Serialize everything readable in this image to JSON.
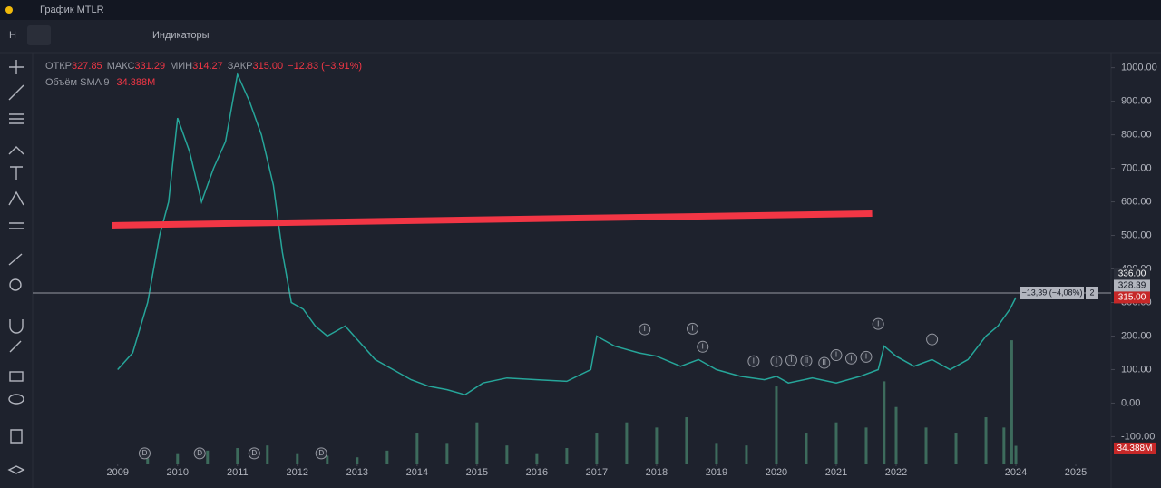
{
  "ui": {
    "title": "График MTLR",
    "interval": "H",
    "indicators": "Индикаторы"
  },
  "chart_data": {
    "type": "line",
    "legend": {
      "open_label": "ОТКР",
      "open": 327.85,
      "high_label": "МАКС",
      "high": 331.29,
      "low_label": "МИН",
      "low": 314.27,
      "close_label": "ЗАКР",
      "close": {
        "value": 315,
        "label": "315.00"
      },
      "change": "−12.83 (−3.91%)",
      "volume_label": "Объём SMA 9",
      "volume": {
        "value": 34.388,
        "label": "34.388M"
      }
    },
    "xlim": [
      2007.58,
      2025.59
    ],
    "xticks": [
      2009,
      2010,
      2011,
      2012,
      2013,
      2014,
      2015,
      2016,
      2017,
      2018,
      2019,
      2020,
      2021,
      2022,
      2024,
      2025
    ],
    "ylim": [
      -180,
      1045
    ],
    "yticks": [
      {
        "value": 1000,
        "label": "1000.00"
      },
      {
        "value": 900,
        "label": "900.00"
      },
      {
        "value": 800,
        "label": "800.00"
      },
      {
        "value": 700,
        "label": "700.00"
      },
      {
        "value": 600,
        "label": "600.00"
      },
      {
        "value": 500,
        "label": "500.00"
      },
      {
        "value": 400,
        "label": "400.00"
      },
      {
        "value": 300,
        "label": "300.00"
      },
      {
        "value": 200,
        "label": "200.00"
      },
      {
        "value": 100,
        "label": "100.00"
      },
      {
        "value": 0,
        "label": "0.00"
      },
      {
        "value": -100,
        "label": "-100.00"
      }
    ],
    "y2lim": [
      0,
      800
    ],
    "series": [
      {
        "color": "#26a69a",
        "x": [
          2009.0,
          2009.25,
          2009.5,
          2009.7,
          2009.85,
          2010.0,
          2010.2,
          2010.4,
          2010.6,
          2010.8,
          2011.0,
          2011.2,
          2011.4,
          2011.6,
          2011.75,
          2011.9,
          2012.1,
          2012.3,
          2012.5,
          2012.8,
          2013.0,
          2013.3,
          2013.6,
          2013.9,
          2014.2,
          2014.5,
          2014.8,
          2015.1,
          2015.5,
          2016.0,
          2016.5,
          2016.9,
          2017.0,
          2017.3,
          2017.7,
          2018.0,
          2018.4,
          2018.7,
          2019.0,
          2019.4,
          2019.8,
          2020.0,
          2020.2,
          2020.6,
          2021.0,
          2021.4,
          2021.7,
          2021.8,
          2022.0,
          2022.3,
          2022.6,
          2022.9,
          2023.2,
          2023.5,
          2023.7,
          2023.9,
          2024.0
        ],
        "values": [
          100,
          150,
          300,
          500,
          600,
          850,
          750,
          600,
          700,
          780,
          980,
          900,
          800,
          650,
          450,
          300,
          280,
          230,
          200,
          230,
          190,
          130,
          100,
          70,
          50,
          40,
          25,
          60,
          75,
          70,
          65,
          100,
          200,
          170,
          150,
          140,
          110,
          130,
          100,
          80,
          70,
          80,
          60,
          75,
          60,
          80,
          100,
          170,
          140,
          110,
          130,
          100,
          130,
          200,
          230,
          280,
          315
        ]
      },
      {
        "axis": "y2",
        "color": "#3d6b5c",
        "x": [
          2009.5,
          2010.0,
          2010.5,
          2011.0,
          2011.5,
          2012.0,
          2012.5,
          2013.0,
          2013.5,
          2014.0,
          2014.5,
          2015.0,
          2015.5,
          2016.0,
          2016.5,
          2017.0,
          2017.5,
          2018.0,
          2018.5,
          2019.0,
          2019.5,
          2020.0,
          2020.5,
          2021.0,
          2021.5,
          2021.8,
          2022.0,
          2022.5,
          2023.0,
          2023.5,
          2023.8,
          2023.93,
          2024.0
        ],
        "values": [
          10,
          20,
          25,
          30,
          35,
          20,
          15,
          12,
          25,
          60,
          40,
          80,
          35,
          20,
          30,
          60,
          80,
          70,
          90,
          40,
          35,
          150,
          60,
          80,
          70,
          160,
          110,
          70,
          60,
          90,
          70,
          240,
          34.388
        ]
      }
    ],
    "trendline": {
      "x": [
        2008.9,
        2021.6
      ],
      "y": [
        530,
        565
      ],
      "color": "#f23645"
    },
    "crosshair": {
      "value": 328.39,
      "label": "−13,39 (−4,08%)",
      "count": 2
    },
    "price_labels": [
      {
        "value": 336,
        "label": "336.00",
        "color": "#2a2e39"
      },
      {
        "value": 328.39,
        "label": "328.39",
        "color": "#b2b5be"
      },
      {
        "value": 315,
        "label": "315.00",
        "color": "#c62828"
      }
    ],
    "events": [
      {
        "x": 2009.45,
        "y": -150,
        "label": "D"
      },
      {
        "x": 2010.37,
        "y": -150,
        "label": "D"
      },
      {
        "x": 2011.28,
        "y": -150,
        "label": "D"
      },
      {
        "x": 2012.4,
        "y": -150,
        "label": "D"
      },
      {
        "x": 2017.8,
        "y": 220,
        "label": "I"
      },
      {
        "x": 2018.6,
        "y": 222,
        "label": "I"
      },
      {
        "x": 2018.77,
        "y": 168,
        "label": "I"
      },
      {
        "x": 2019.62,
        "y": 125,
        "label": "I"
      },
      {
        "x": 2020.0,
        "y": 125,
        "label": "I"
      },
      {
        "x": 2020.25,
        "y": 128,
        "label": "I"
      },
      {
        "x": 2020.5,
        "y": 126,
        "label": "II"
      },
      {
        "x": 2020.8,
        "y": 120,
        "label": "II"
      },
      {
        "x": 2021.0,
        "y": 143,
        "label": "I"
      },
      {
        "x": 2021.25,
        "y": 133,
        "label": "I"
      },
      {
        "x": 2021.5,
        "y": 138,
        "label": "I"
      },
      {
        "x": 2021.7,
        "y": 236,
        "label": "I"
      },
      {
        "x": 2022.6,
        "y": 190,
        "label": "I"
      }
    ]
  }
}
